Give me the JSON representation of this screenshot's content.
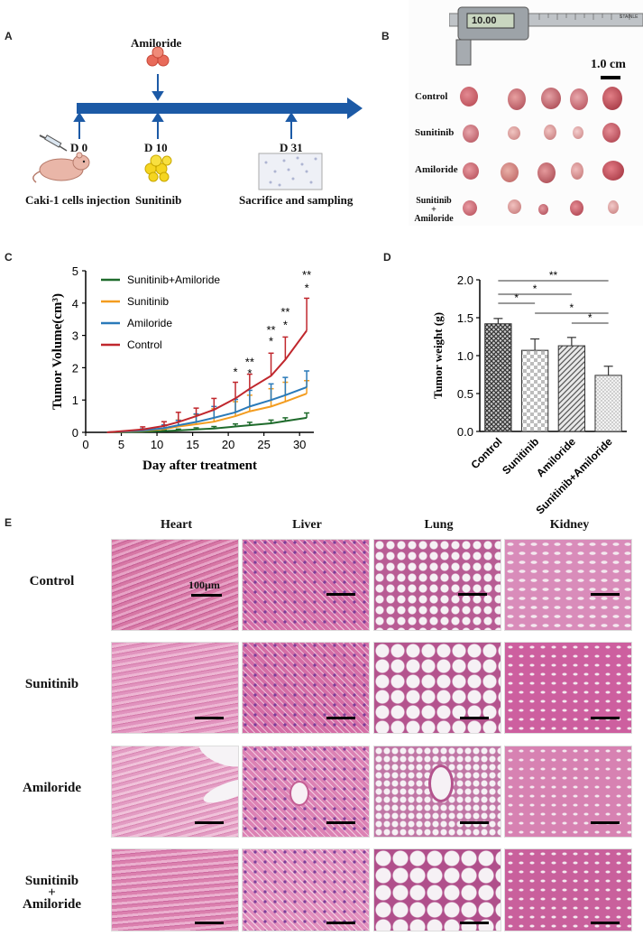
{
  "panels": {
    "A": "A",
    "B": "B",
    "C": "C",
    "D": "D",
    "E": "E"
  },
  "panel_a": {
    "drug_top": "Amiloride",
    "d0": "D 0",
    "d10": "D 10",
    "d31": "D 31",
    "injection": "Caki-1 cells injection",
    "drug_bottom": "Sunitinib",
    "sacrifice": "Sacrifice and sampling"
  },
  "panel_b": {
    "scale": "1.0 cm",
    "caliper_reading": "10.00",
    "caliper_brand": "STAINLE",
    "rows": [
      "Control",
      "Sunitinib",
      "Amiloride",
      "Sunitinib\n+\nAmiloride"
    ]
  },
  "panel_e": {
    "columns": [
      "Heart",
      "Liver",
      "Lung",
      "Kidney"
    ],
    "rows": [
      "Control",
      "Sunitinib",
      "Amiloride",
      "Sunitinib\n+\nAmiloride"
    ],
    "scale_label": "100µm"
  },
  "colors": {
    "control": "#c0272d",
    "amiloride": "#2a7ab9",
    "sunitinib": "#f39c1f",
    "combo": "#1f6b2c",
    "timeline": "#1c5aa6"
  },
  "chart_data": [
    {
      "type": "line",
      "xlabel": "Day after treatment",
      "ylabel": "Tumor Volume(cm³)",
      "xlim": [
        0,
        32
      ],
      "ylim": [
        0,
        5
      ],
      "xticks": [
        "0",
        "5",
        "10",
        "15",
        "20",
        "25",
        "30"
      ],
      "yticks": [
        "0",
        "1",
        "2",
        "3",
        "4",
        "5"
      ],
      "legend": "top-left",
      "x": [
        3,
        8,
        11,
        13,
        15.5,
        18,
        21,
        23,
        26,
        28,
        31
      ],
      "series": [
        {
          "name": "Sunitinib+Amiloride",
          "color": "#1f6b2c",
          "values": [
            0,
            0.02,
            0.04,
            0.06,
            0.09,
            0.12,
            0.18,
            0.22,
            0.28,
            0.35,
            0.45
          ],
          "err": [
            0,
            0.02,
            0.03,
            0.04,
            0.05,
            0.06,
            0.08,
            0.09,
            0.1,
            0.1,
            0.15
          ]
        },
        {
          "name": "Sunitinib",
          "color": "#f39c1f",
          "values": [
            0,
            0.05,
            0.1,
            0.18,
            0.25,
            0.33,
            0.5,
            0.65,
            0.8,
            0.95,
            1.2
          ],
          "err": [
            0,
            0.05,
            0.1,
            0.2,
            0.3,
            0.4,
            0.45,
            0.5,
            0.55,
            0.6,
            0.4
          ]
        },
        {
          "name": "Amiloride",
          "color": "#2a7ab9",
          "values": [
            0,
            0.06,
            0.13,
            0.22,
            0.32,
            0.45,
            0.62,
            0.8,
            1.0,
            1.15,
            1.4
          ],
          "err": [
            0,
            0.05,
            0.1,
            0.15,
            0.25,
            0.35,
            0.4,
            0.5,
            0.5,
            0.55,
            0.5
          ]
        },
        {
          "name": "Control",
          "color": "#c0272d",
          "values": [
            0,
            0.09,
            0.2,
            0.32,
            0.5,
            0.7,
            1.05,
            1.35,
            1.75,
            2.25,
            3.15
          ],
          "err": [
            0,
            0.08,
            0.13,
            0.3,
            0.25,
            0.35,
            0.5,
            0.45,
            0.7,
            0.7,
            1.0
          ]
        }
      ],
      "annotations": [
        {
          "x": 21,
          "text": "*"
        },
        {
          "x": 23,
          "text": "**"
        },
        {
          "x": 23,
          "text": "*"
        },
        {
          "x": 26,
          "text": "**"
        },
        {
          "x": 26,
          "text": "*"
        },
        {
          "x": 28,
          "text": "**"
        },
        {
          "x": 28,
          "text": "*"
        },
        {
          "x": 31,
          "text": "**"
        },
        {
          "x": 31,
          "text": "*"
        }
      ]
    },
    {
      "type": "bar",
      "ylabel": "Tumor weight (g)",
      "ylim": [
        0,
        2.0
      ],
      "yticks": [
        "0.0",
        "0.5",
        "1.0",
        "1.5",
        "2.0"
      ],
      "categories": [
        "Control",
        "Sunitinib",
        "Amiloride",
        "Sunitinib+Amiloride"
      ],
      "values": [
        1.42,
        1.07,
        1.13,
        0.74
      ],
      "err": [
        0.07,
        0.15,
        0.11,
        0.12
      ],
      "significance": [
        {
          "from": 0,
          "to": 3,
          "text": "**"
        },
        {
          "from": 0,
          "to": 2,
          "text": "*"
        },
        {
          "from": 0,
          "to": 1,
          "text": "*"
        },
        {
          "from": 1,
          "to": 3,
          "text": "*"
        },
        {
          "from": 2,
          "to": 3,
          "text": "*"
        }
      ]
    }
  ]
}
